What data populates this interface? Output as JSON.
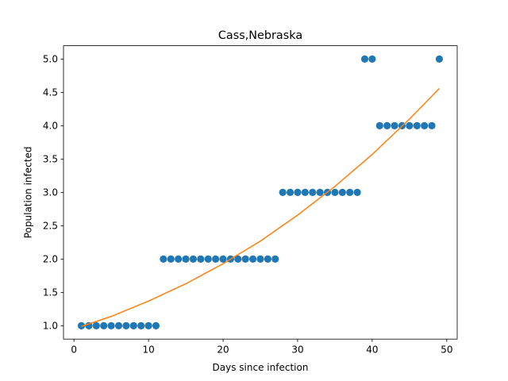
{
  "chart_data": {
    "type": "scatter",
    "title": "Cass,Nebraska",
    "xlabel": "Days since infection",
    "ylabel": "Population infected",
    "xlim": [
      -1.4,
      51.4
    ],
    "ylim": [
      0.8,
      5.2
    ],
    "xticks": [
      0,
      10,
      20,
      30,
      40,
      50
    ],
    "xtick_labels": [
      "0",
      "10",
      "20",
      "30",
      "40",
      "50"
    ],
    "yticks": [
      1.0,
      1.5,
      2.0,
      2.5,
      3.0,
      3.5,
      4.0,
      4.5,
      5.0
    ],
    "ytick_labels": [
      "1.0",
      "1.5",
      "2.0",
      "2.5",
      "3.0",
      "3.5",
      "4.0",
      "4.5",
      "5.0"
    ],
    "grid": false,
    "series": [
      {
        "kind": "scatter",
        "color": "#1f77b4",
        "x": [
          1,
          2,
          3,
          4,
          5,
          6,
          7,
          8,
          9,
          10,
          11,
          12,
          13,
          14,
          15,
          16,
          17,
          18,
          19,
          20,
          21,
          22,
          23,
          24,
          25,
          26,
          27,
          28,
          29,
          30,
          31,
          32,
          33,
          34,
          35,
          36,
          37,
          38,
          39,
          40,
          41,
          42,
          43,
          44,
          45,
          46,
          47,
          48,
          49
        ],
        "y": [
          1,
          1,
          1,
          1,
          1,
          1,
          1,
          1,
          1,
          1,
          1,
          2,
          2,
          2,
          2,
          2,
          2,
          2,
          2,
          2,
          2,
          2,
          2,
          2,
          2,
          2,
          2,
          3,
          3,
          3,
          3,
          3,
          3,
          3,
          3,
          3,
          3,
          3,
          5,
          5,
          4,
          4,
          4,
          4,
          4,
          4,
          4,
          4,
          5
        ]
      },
      {
        "kind": "line",
        "color": "#ff7f0e",
        "x": [
          1,
          5,
          10,
          15,
          20,
          25,
          30,
          35,
          40,
          45,
          49
        ],
        "y": [
          0.99,
          1.14,
          1.37,
          1.63,
          1.93,
          2.27,
          2.66,
          3.09,
          3.57,
          4.1,
          4.56
        ]
      }
    ]
  }
}
